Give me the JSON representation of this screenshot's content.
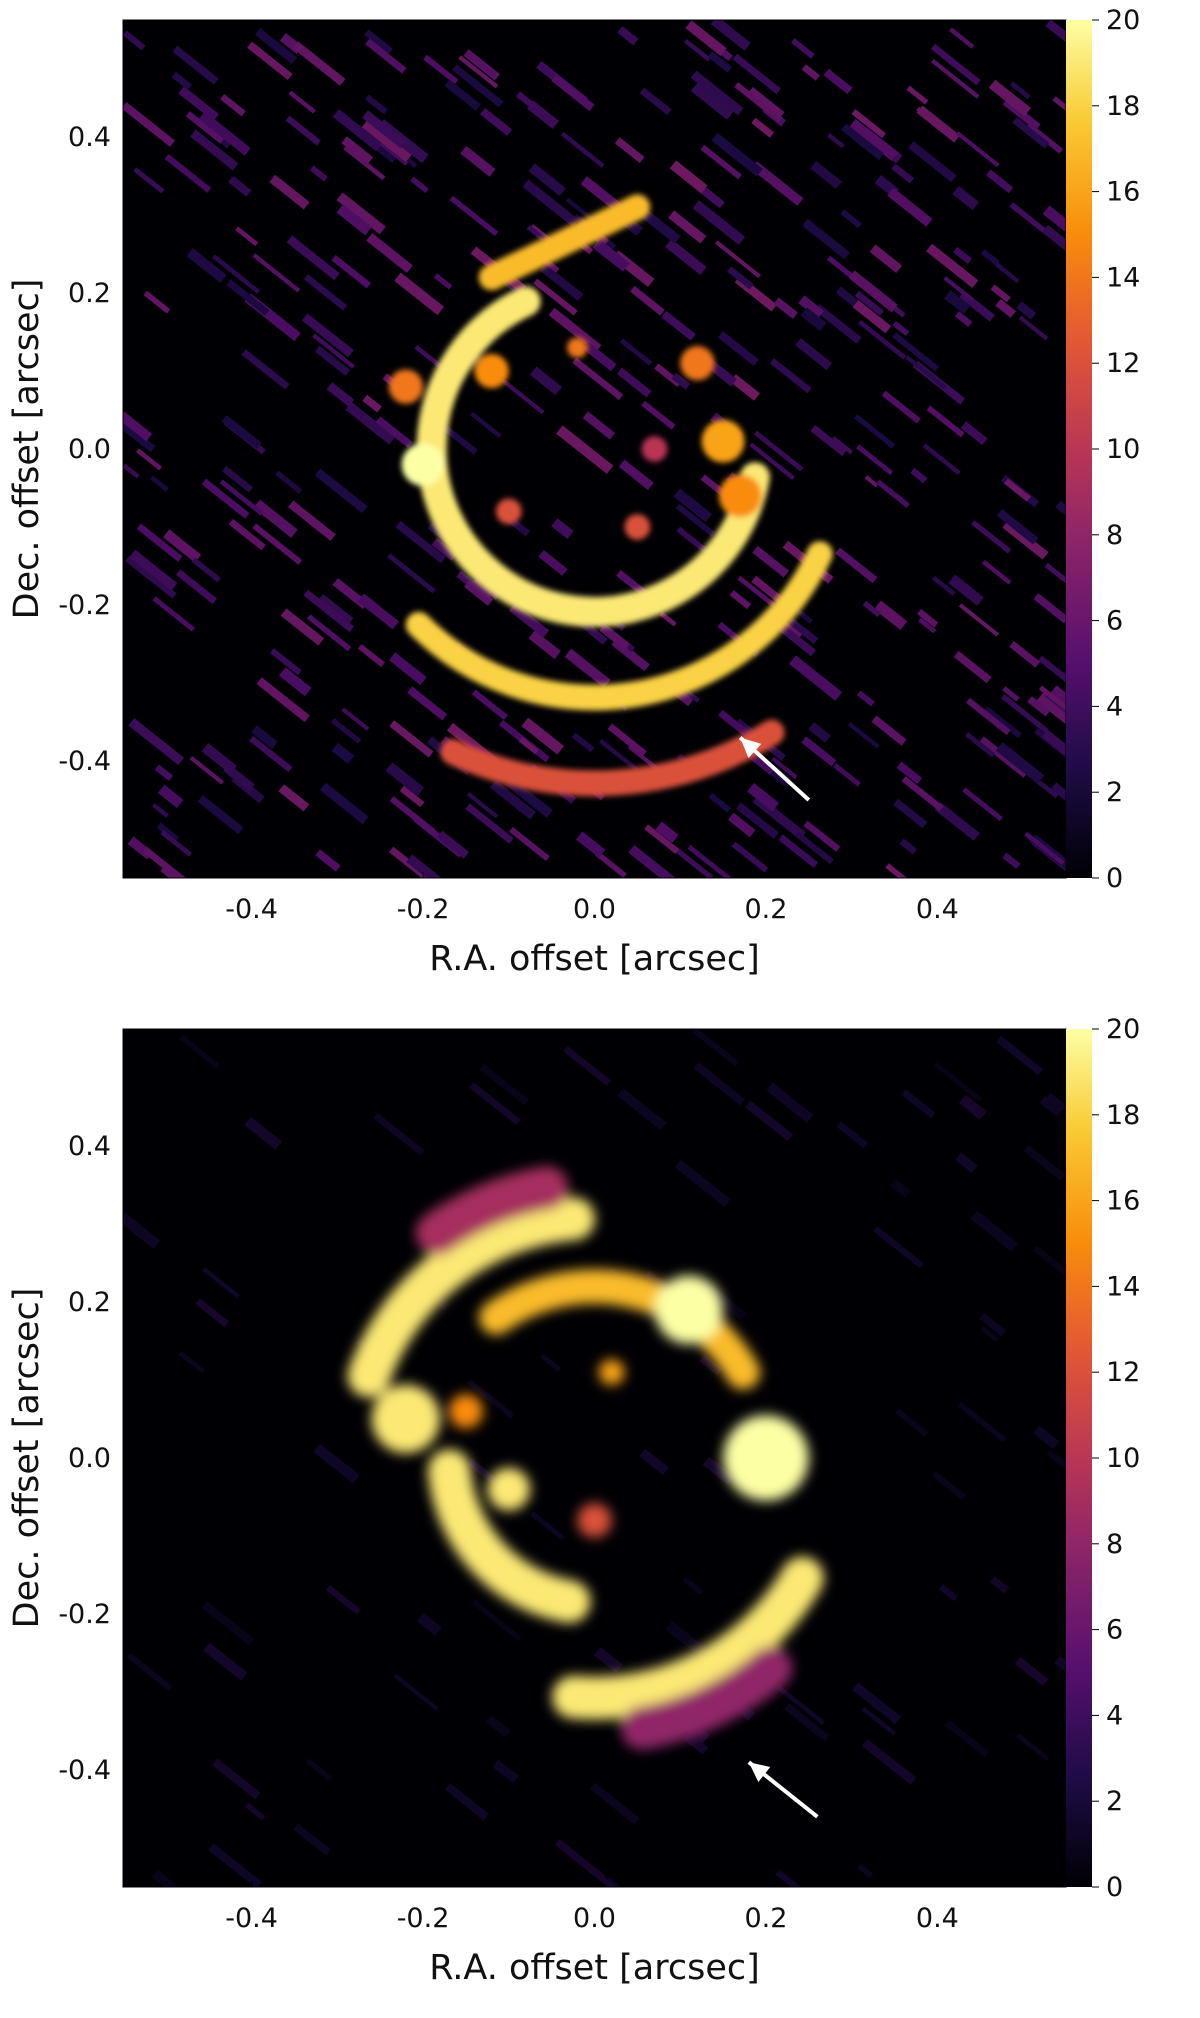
{
  "chart_data": [
    {
      "type": "heatmap",
      "title": "",
      "xlabel": "R.A. offset [arcsec]",
      "ylabel": "Dec. offset [arcsec]",
      "xlim": [
        -0.55,
        0.55
      ],
      "ylim": [
        -0.55,
        0.55
      ],
      "x_ticks": [
        "-0.4",
        "-0.2",
        "0.0",
        "0.2",
        "0.4"
      ],
      "x_tick_values": [
        -0.4,
        -0.2,
        0.0,
        0.2,
        0.4
      ],
      "y_ticks": [
        "0.4",
        "0.2",
        "0.0",
        "-0.2",
        "-0.4"
      ],
      "y_tick_values": [
        0.4,
        0.2,
        0.0,
        -0.2,
        -0.4
      ],
      "colorbar": {
        "ticks": [
          "20",
          "18",
          "16",
          "14",
          "12",
          "10",
          "8",
          "6",
          "4",
          "2",
          "0"
        ],
        "tick_values": [
          20,
          18,
          16,
          14,
          12,
          10,
          8,
          6,
          4,
          2,
          0
        ],
        "range": [
          0,
          20
        ],
        "colormap": "inferno"
      },
      "grid": false,
      "features": [
        {
          "kind": "arc",
          "cx": 0.0,
          "cy": 0.0,
          "r": 0.19,
          "a0": -245,
          "a1": -10,
          "value": 19,
          "width": 0.035
        },
        {
          "kind": "arc",
          "cx": 0.0,
          "cy": 0.0,
          "r": 0.29,
          "a0": -135,
          "a1": -25,
          "value": 18,
          "width": 0.03
        },
        {
          "kind": "arc",
          "cx": 0.0,
          "cy": 0.0,
          "r": 0.39,
          "a0": -115,
          "a1": -58,
          "value": 12,
          "width": 0.03
        },
        {
          "kind": "line",
          "x0": -0.12,
          "y0": 0.22,
          "x1": 0.05,
          "y1": 0.31,
          "value": 17,
          "width": 0.03
        },
        {
          "kind": "blob",
          "x": -0.2,
          "y": -0.02,
          "r": 0.025,
          "value": 20
        },
        {
          "kind": "blob",
          "x": -0.22,
          "y": 0.08,
          "r": 0.02,
          "value": 14
        },
        {
          "kind": "blob",
          "x": -0.12,
          "y": 0.1,
          "r": 0.02,
          "value": 15
        },
        {
          "kind": "blob",
          "x": 0.15,
          "y": 0.01,
          "r": 0.025,
          "value": 16
        },
        {
          "kind": "blob",
          "x": 0.17,
          "y": -0.06,
          "r": 0.025,
          "value": 15
        },
        {
          "kind": "blob",
          "x": 0.12,
          "y": 0.11,
          "r": 0.02,
          "value": 14
        },
        {
          "kind": "blob",
          "x": -0.1,
          "y": -0.08,
          "r": 0.015,
          "value": 12
        },
        {
          "kind": "blob",
          "x": 0.05,
          "y": -0.1,
          "r": 0.015,
          "value": 12
        },
        {
          "kind": "blob",
          "x": 0.07,
          "y": 0.0,
          "r": 0.015,
          "value": 10
        },
        {
          "kind": "blob",
          "x": -0.02,
          "y": 0.13,
          "r": 0.012,
          "value": 14
        }
      ],
      "arrow": {
        "from": [
          0.25,
          -0.45
        ],
        "to": [
          0.17,
          -0.37
        ]
      }
    },
    {
      "type": "heatmap",
      "title": "",
      "xlabel": "R.A. offset [arcsec]",
      "ylabel": "Dec. offset [arcsec]",
      "xlim": [
        -0.55,
        0.55
      ],
      "ylim": [
        -0.55,
        0.55
      ],
      "x_ticks": [
        "-0.4",
        "-0.2",
        "0.0",
        "0.2",
        "0.4"
      ],
      "x_tick_values": [
        -0.4,
        -0.2,
        0.0,
        0.2,
        0.4
      ],
      "y_ticks": [
        "0.4",
        "0.2",
        "0.0",
        "-0.2",
        "-0.4"
      ],
      "y_tick_values": [
        0.4,
        0.2,
        0.0,
        -0.2,
        -0.4
      ],
      "colorbar": {
        "ticks": [
          "20",
          "18",
          "16",
          "14",
          "12",
          "10",
          "8",
          "6",
          "4",
          "2",
          "0"
        ],
        "tick_values": [
          20,
          18,
          16,
          14,
          12,
          10,
          8,
          6,
          4,
          2,
          0
        ],
        "range": [
          0,
          20
        ],
        "colormap": "inferno"
      },
      "grid": false,
      "features": [
        {
          "kind": "arc",
          "cx": 0.0,
          "cy": 0.0,
          "r": 0.28,
          "a0": 95,
          "a1": 160,
          "value": 19,
          "width": 0.05
        },
        {
          "kind": "arc",
          "cx": 0.0,
          "cy": 0.0,
          "r": 0.28,
          "a0": -95,
          "a1": -30,
          "value": 19,
          "width": 0.05
        },
        {
          "kind": "arc",
          "cx": 0.0,
          "cy": 0.0,
          "r": 0.2,
          "a0": 30,
          "a1": 125,
          "value": 17,
          "width": 0.04
        },
        {
          "kind": "arc",
          "cx": 0.0,
          "cy": 0.0,
          "r": 0.17,
          "a0": -175,
          "a1": -100,
          "value": 19,
          "width": 0.05
        },
        {
          "kind": "arc",
          "cx": 0.0,
          "cy": 0.0,
          "r": 0.32,
          "a0": 100,
          "a1": 125,
          "value": 9,
          "width": 0.05
        },
        {
          "kind": "arc",
          "cx": 0.0,
          "cy": 0.0,
          "r": 0.32,
          "a0": -80,
          "a1": -50,
          "value": 8,
          "width": 0.05
        },
        {
          "kind": "blob",
          "x": 0.11,
          "y": 0.19,
          "r": 0.04,
          "value": 20
        },
        {
          "kind": "blob",
          "x": 0.2,
          "y": 0.0,
          "r": 0.05,
          "value": 20
        },
        {
          "kind": "blob",
          "x": -0.22,
          "y": 0.05,
          "r": 0.04,
          "value": 19
        },
        {
          "kind": "blob",
          "x": -0.1,
          "y": -0.04,
          "r": 0.025,
          "value": 19
        },
        {
          "kind": "blob",
          "x": 0.02,
          "y": 0.11,
          "r": 0.015,
          "value": 16
        },
        {
          "kind": "blob",
          "x": 0.0,
          "y": -0.08,
          "r": 0.02,
          "value": 12
        },
        {
          "kind": "blob",
          "x": -0.15,
          "y": 0.06,
          "r": 0.02,
          "value": 15
        }
      ],
      "arrow": {
        "from": [
          0.26,
          -0.46
        ],
        "to": [
          0.18,
          -0.39
        ]
      }
    }
  ]
}
